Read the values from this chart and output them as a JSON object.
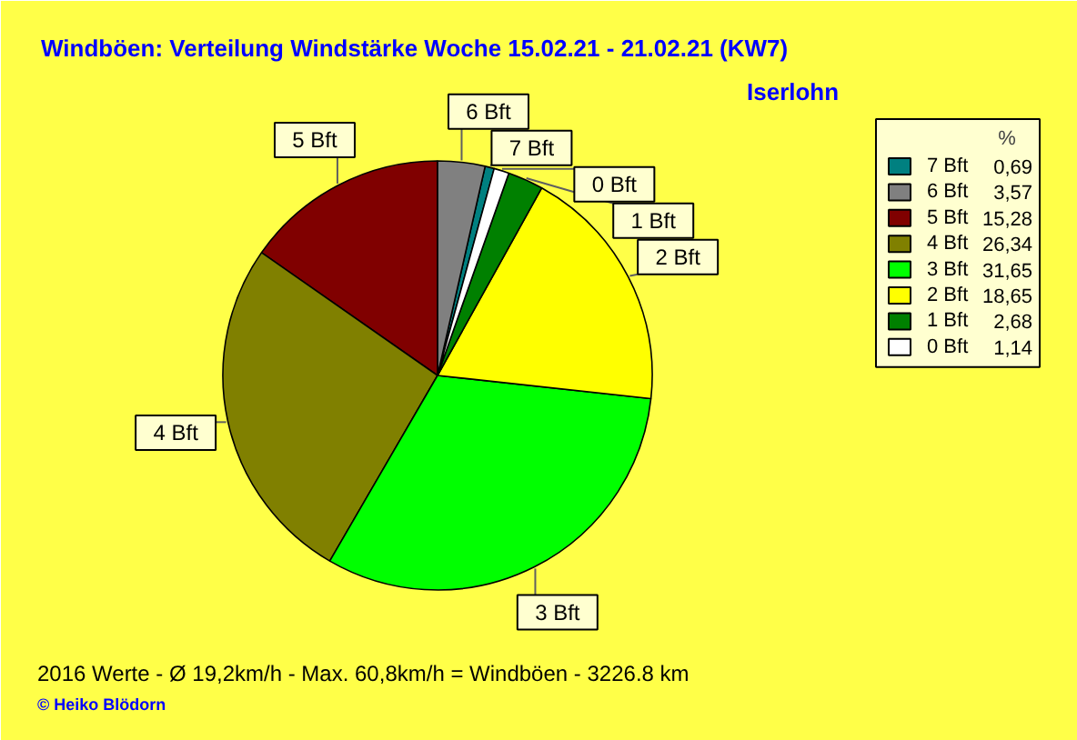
{
  "chart_data": {
    "type": "pie",
    "title": "Windböen: Verteilung Windstärke  Woche 15.02.21 - 21.02.21 (KW7)",
    "subtitle": "Iserlohn",
    "categories": [
      "7 Bft",
      "6 Bft",
      "5 Bft",
      "4 Bft",
      "3 Bft",
      "2 Bft",
      "1 Bft",
      "0 Bft"
    ],
    "values": [
      0.69,
      3.57,
      15.28,
      26.34,
      31.65,
      18.65,
      2.68,
      1.14
    ],
    "colors": [
      "#008080",
      "#808080",
      "#800000",
      "#808000",
      "#00ff00",
      "#ffff00",
      "#008000",
      "#ffffff"
    ],
    "value_labels": [
      "0,69",
      "3,57",
      "15,28",
      "26,34",
      "31,65",
      "18,65",
      "2,68",
      "1,14"
    ],
    "legend": "top right",
    "legend_title": "%",
    "annotations": [
      "2016 Werte   -   Ø 19,2km/h  -  Max. 60,8km/h = Windböen   -   3226.8 km",
      "© Heiko Blödorn"
    ]
  }
}
